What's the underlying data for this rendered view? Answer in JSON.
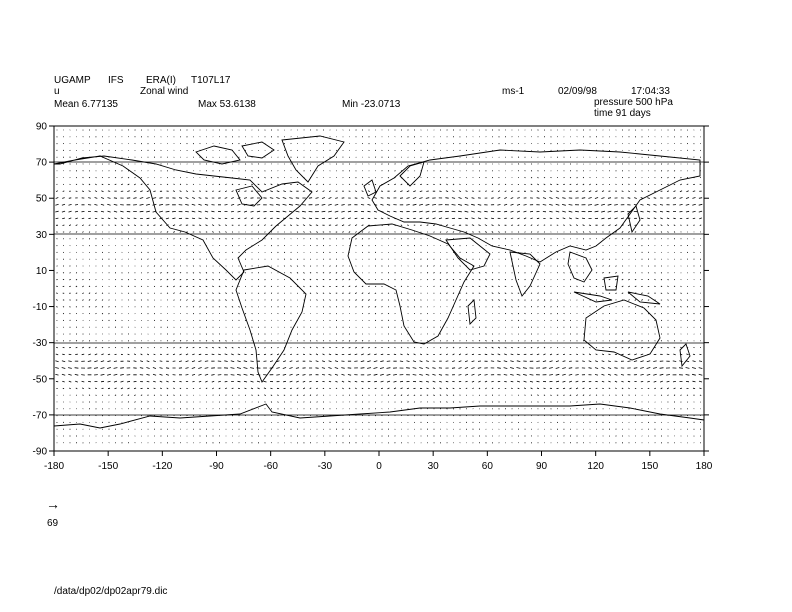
{
  "header": {
    "model": "UGAMP",
    "system": "IFS",
    "dataset": "ERA(I)",
    "resolution": "T107L17",
    "variable": "u",
    "description": "Zonal wind",
    "units": "ms-1",
    "date": "02/09/98",
    "time": "17:04:33",
    "mean": "Mean 6.77135",
    "max": "Max 53.6138",
    "min": "Min -23.0713",
    "level": "pressure 500 hPa",
    "elapsed": "time 91 days"
  },
  "reference_vector": {
    "arrow": "→",
    "value": "69"
  },
  "footer": {
    "file_path": "/data/dp02/dp02apr79.dic"
  },
  "map": {
    "projection": "equirectangular",
    "lon_range": [
      -180,
      180
    ],
    "lat_range": [
      -90,
      90
    ],
    "x_ticks": [
      "-180",
      "-150",
      "-120",
      "-90",
      "-60",
      "-30",
      "0",
      "30",
      "60",
      "90",
      "120",
      "150",
      "180"
    ],
    "y_ticks": [
      "90",
      "70",
      "50",
      "30",
      "10",
      "-10",
      "-30",
      "-50",
      "-70",
      "-90"
    ],
    "field": "wind vectors",
    "coastline_color": "#000000",
    "vector_color": "#000000"
  }
}
